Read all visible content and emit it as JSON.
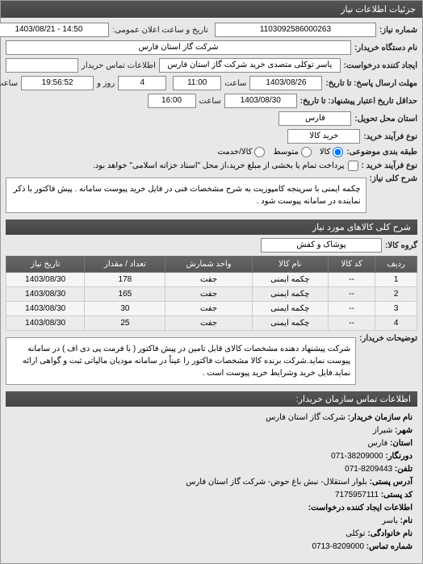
{
  "panel_title": "جزئیات اطلاعات نیاز",
  "r1": {
    "num_label": "شماره نیاز:",
    "num": "1103092586000263",
    "dt_label": "تاریخ و ساعت اعلان عمومی:",
    "dt": "14:50 - 1403/08/21"
  },
  "r2": {
    "buyer_label": "نام دستگاه خریدار:",
    "buyer": "شرکت گاز استان فارس"
  },
  "r3": {
    "req_label": "ایجاد کننده درخواست:",
    "req": "یاسر توکلی متصدی خرید شرکت گاز استان فارس",
    "contact_label": "اطلاعات تماس خریدار"
  },
  "r4": {
    "deadline_label": "مهلت ارسال پاسخ: تا تاریخ:",
    "date": "1403/08/26",
    "time_label": "ساعت",
    "time": "11:00",
    "remain_label": "روز و",
    "days": "4",
    "remain_time": "19:56:52",
    "remain_suffix": "ساعت باقی مانده"
  },
  "r5": {
    "label": "حداقل تاریخ اعتبار پیشنهاد: تا تاریخ:",
    "date": "1403/08/30",
    "time_label": "ساعت",
    "time": "16:00"
  },
  "r6": {
    "label": "استان محل تحویل:",
    "value": "فارس"
  },
  "r7": {
    "label": "نوع فرآیند خرید:",
    "value": "خرید کالا"
  },
  "r8": {
    "label": "طبقه بندی موضوعی:",
    "opts": [
      "کالا",
      "متوسط",
      "کالا/خدمت"
    ]
  },
  "r9": {
    "label": "نوع فرآیند خرید :",
    "check_label": "پرداخت تمام یا بخشی از مبلغ خرید،از محل \"اسناد خزانه اسلامی\" خواهد بود."
  },
  "desc": {
    "label": "شرح کلی نیاز:",
    "text": "چکمه ایمنی با سرپنجه کامپوزیت به شرح مشخصات فنی در فایل خرید پیوست سامانه . پیش فاکتور با ذکر نماینده در سامانه پیوست شود ."
  },
  "goods_header": "شرح کلی کالاهای مورد نیاز",
  "group": {
    "label": "گروه کالا:",
    "value": "پوشاک و کفش"
  },
  "table": {
    "headers": [
      "ردیف",
      "کد کالا",
      "نام کالا",
      "واحد شمارش",
      "تعداد / مقدار",
      "تاریخ نیاز"
    ],
    "rows": [
      [
        "1",
        "--",
        "چکمه ایمنی",
        "جفت",
        "178",
        "1403/08/30"
      ],
      [
        "2",
        "--",
        "چکمه ایمنی",
        "جفت",
        "165",
        "1403/08/30"
      ],
      [
        "3",
        "--",
        "چکمه ایمنی",
        "جفت",
        "30",
        "1403/08/30"
      ],
      [
        "4",
        "--",
        "چکمه ایمنی",
        "جفت",
        "25",
        "1403/08/30"
      ]
    ]
  },
  "notes": {
    "label": "توضیحات خریدار:",
    "text": "شرکت پیشنهاد دهنده مشخصات کالای قابل تامین در پیش فاکتور ( با فرمت پی دی اف ) در سامانه پیوست نماید.شرکت برنده کالا مشخصات فاکتور را عیناً در سامانه مودیان مالیاتی ثبت و گواهی ارائه نماید.فایل خرید وشرایط خرید پیوست است ."
  },
  "contact_header": "اطلاعات تماس سازمان خریدار:",
  "info": {
    "org_label": "نام سازمان خریدار:",
    "org": "شرکت گاز استان فارس",
    "city_label": "شهر:",
    "city": "شیراز",
    "province_label": "استان:",
    "province": "فارس",
    "fax_label": "دورنگار:",
    "fax": "38209000-071",
    "phone_label": "تلفن:",
    "phone": "8209443-071",
    "addr_label": "آدرس پستی:",
    "addr": "بلوار استقلال- نبش باغ حوض- شرکت گاز استان فارس",
    "post_label": "کد پستی:",
    "post": "7175957111",
    "creator_header": "اطلاعات ایجاد کننده درخواست:",
    "name_label": "نام:",
    "name": "یاسر",
    "lname_label": "نام خانوادگی:",
    "lname": "توکلی",
    "cphone_label": "شماره تماس:",
    "cphone": "8209000-0713"
  }
}
